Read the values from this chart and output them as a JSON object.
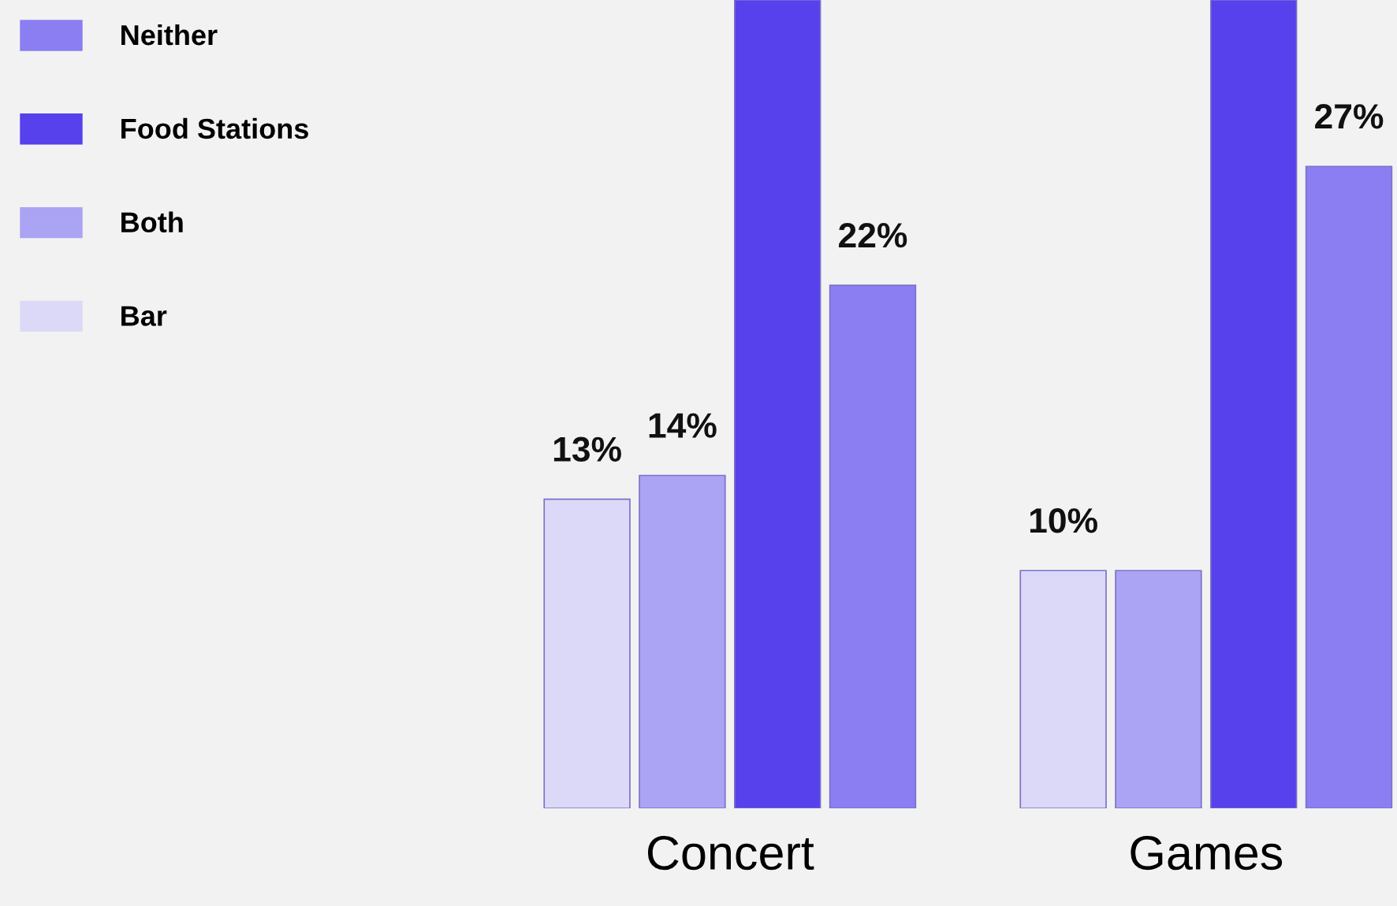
{
  "chart_data": {
    "type": "bar",
    "categories": [
      "Concert",
      "Games"
    ],
    "ylim": [
      0,
      34
    ],
    "legend": "top left",
    "grid": false,
    "tick_labels": "x",
    "series": [
      {
        "name": "Bar",
        "color": "#dcd9f8",
        "values": [
          13,
          10
        ],
        "value_labels": [
          "13%",
          "10%"
        ]
      },
      {
        "name": "Both",
        "color": "#aba3f3",
        "values": [
          14,
          10
        ],
        "value_labels": [
          "14%",
          null
        ]
      },
      {
        "name": "Food Stations",
        "color": "#5641ec",
        "values": [
          34,
          34
        ],
        "value_labels": [
          null,
          null
        ]
      },
      {
        "name": "Neither",
        "color": "#8a7ef2",
        "values": [
          22,
          27
        ],
        "value_labels": [
          "22%",
          "27%"
        ]
      }
    ]
  }
}
